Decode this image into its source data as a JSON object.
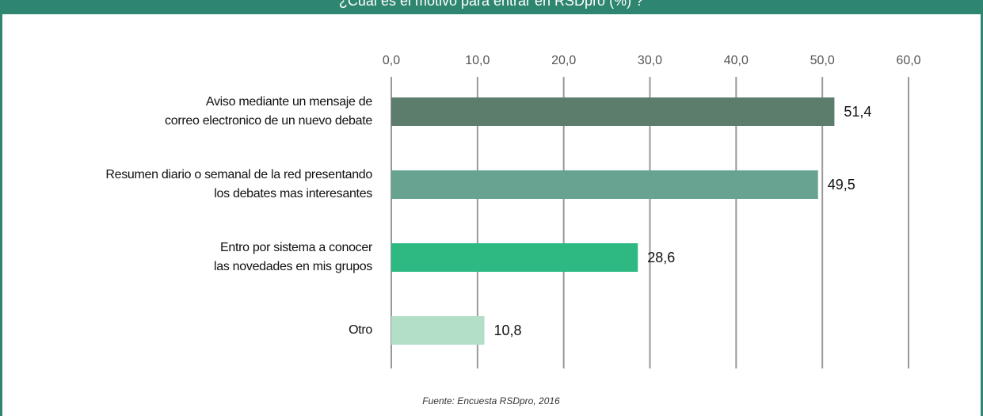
{
  "chart_data": {
    "type": "bar",
    "orientation": "horizontal",
    "title": "¿Cuál es el motivo para entrar en RSDpro (%) ?",
    "categories": [
      "Aviso mediante un mensaje de\ncorreo electronico de un nuevo debate",
      "Resumen diario o semanal de la red presentando\nlos debates mas interesantes",
      "Entro por sistema a conocer\nlas novedades en mis grupos",
      "Otro"
    ],
    "values": [
      51.4,
      49.5,
      28.6,
      10.8
    ],
    "value_labels": [
      "51,4",
      "49,5",
      "28,6",
      "10,8"
    ],
    "colors": [
      "#5c7d6b",
      "#67a390",
      "#2eb882",
      "#b3dfc8"
    ],
    "xlim": [
      0,
      60
    ],
    "xticks": [
      {
        "value": 0,
        "label": "0,0"
      },
      {
        "value": 10,
        "label": "10,0"
      },
      {
        "value": 20,
        "label": "20,0"
      },
      {
        "value": 30,
        "label": "30,0"
      },
      {
        "value": 40,
        "label": "40,0"
      },
      {
        "value": 50,
        "label": "50,0"
      },
      {
        "value": 60,
        "label": "60,0"
      }
    ],
    "grid": true,
    "source": "Fuente: Encuesta RSDpro, 2016"
  }
}
